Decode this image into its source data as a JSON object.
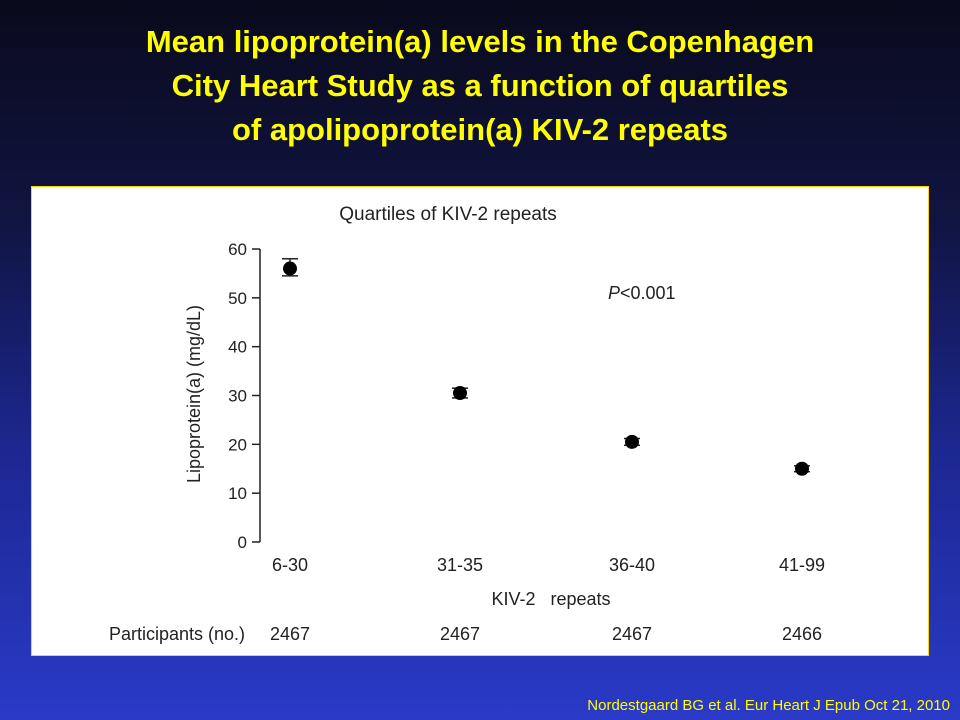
{
  "slide": {
    "title_lines": [
      "Mean lipoprotein(a) levels in the Copenhagen",
      "City Heart Study as a function of quartiles",
      "of apolipoprotein(a) KIV-2 repeats"
    ],
    "citation": "Nordestgaard BG et al. Eur Heart J  Epub Oct 21, 2010"
  },
  "chart_data": {
    "type": "scatter",
    "title": "Quartiles of KIV-2 repeats",
    "xlabel": "KIV-2   repeats",
    "ylabel": "Lipoprotein(a) (mg/dL)",
    "categories": [
      "6-30",
      "31-35",
      "36-40",
      "41-99"
    ],
    "values": [
      56,
      30.5,
      20.5,
      15
    ],
    "error_low": [
      54.5,
      29.5,
      19.8,
      14.4
    ],
    "error_high": [
      58,
      31.5,
      21.2,
      15.6
    ],
    "ylim": [
      0,
      60
    ],
    "yticks": [
      0,
      10,
      20,
      30,
      40,
      50,
      60
    ],
    "annotation": "P<0.001",
    "participants_label": "Participants (no.)",
    "participants": [
      "2467",
      "2467",
      "2467",
      "2466"
    ],
    "grid": false
  }
}
